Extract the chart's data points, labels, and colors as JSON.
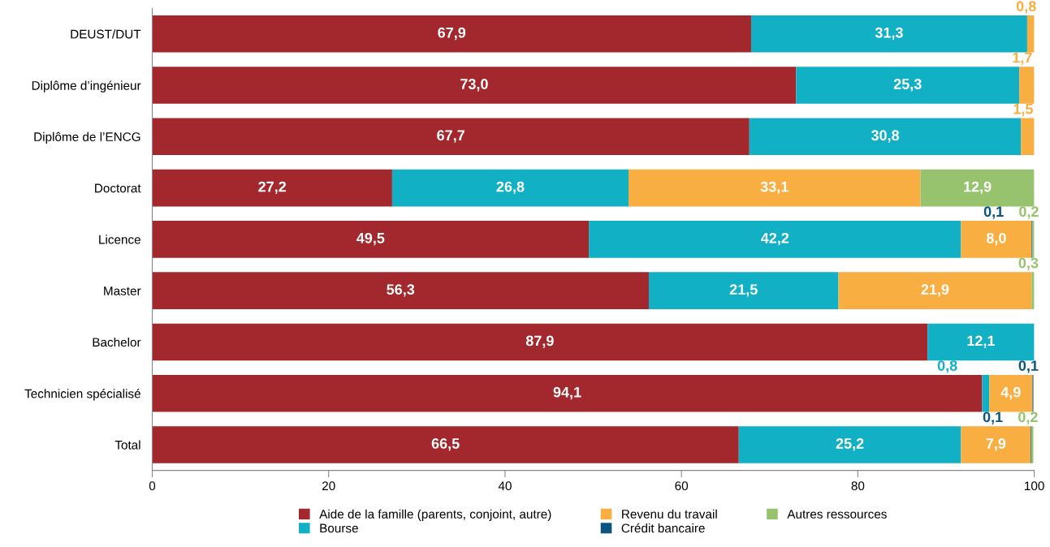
{
  "chart_data": {
    "type": "bar",
    "orientation": "horizontal",
    "stacked": true,
    "categories": [
      "DEUST/DUT",
      "Diplôme d’ingénieur",
      "Diplôme de l’ENCG",
      "Doctorat",
      "Licence",
      "Master",
      "Bachelor",
      "Technicien spécialisé",
      "Total"
    ],
    "series": [
      {
        "name": "Aide de la famille (parents, conjoint, autre)",
        "color": "#a2282e",
        "values": [
          67.9,
          73.0,
          67.7,
          27.2,
          49.5,
          56.3,
          87.9,
          94.1,
          66.5
        ],
        "value_labels": [
          "67,9",
          "73,0",
          "67,7",
          "27,2",
          "49,5",
          "56,3",
          "87,9",
          "94,1",
          "66,5"
        ]
      },
      {
        "name": "Bourse",
        "color": "#12b0c5",
        "values": [
          31.3,
          25.3,
          30.8,
          26.8,
          42.2,
          21.5,
          12.1,
          0.8,
          25.2
        ],
        "value_labels": [
          "31,3",
          "25,3",
          "30,8",
          "26,8",
          "42,2",
          "21,5",
          "12,1",
          "0,8",
          "25,2"
        ]
      },
      {
        "name": "Revenu du travail",
        "color": "#f9ae41",
        "values": [
          0.8,
          1.7,
          1.5,
          33.1,
          8.0,
          21.9,
          null,
          4.9,
          7.9
        ],
        "value_labels": [
          "0,8",
          "1,7",
          "1,5",
          "33,1",
          "8,0",
          "21,9",
          null,
          "4,9",
          "7,9"
        ]
      },
      {
        "name": "Crédit bancaire",
        "color": "#0b5680",
        "values": [
          null,
          null,
          null,
          null,
          0.1,
          null,
          null,
          0.1,
          0.1
        ],
        "value_labels": [
          null,
          null,
          null,
          null,
          "0,1",
          null,
          null,
          "0,1",
          "0,1"
        ]
      },
      {
        "name": "Autres ressources",
        "color": "#98c36e",
        "values": [
          null,
          null,
          null,
          12.9,
          0.2,
          0.3,
          null,
          null,
          0.2
        ],
        "value_labels": [
          null,
          null,
          null,
          "12,9",
          "0,2",
          "0,3",
          null,
          null,
          "0,2"
        ]
      }
    ],
    "xlim": [
      0,
      100
    ],
    "xticks": [
      0,
      20,
      40,
      60,
      80,
      100
    ],
    "grid": false,
    "legend": "bottom"
  }
}
